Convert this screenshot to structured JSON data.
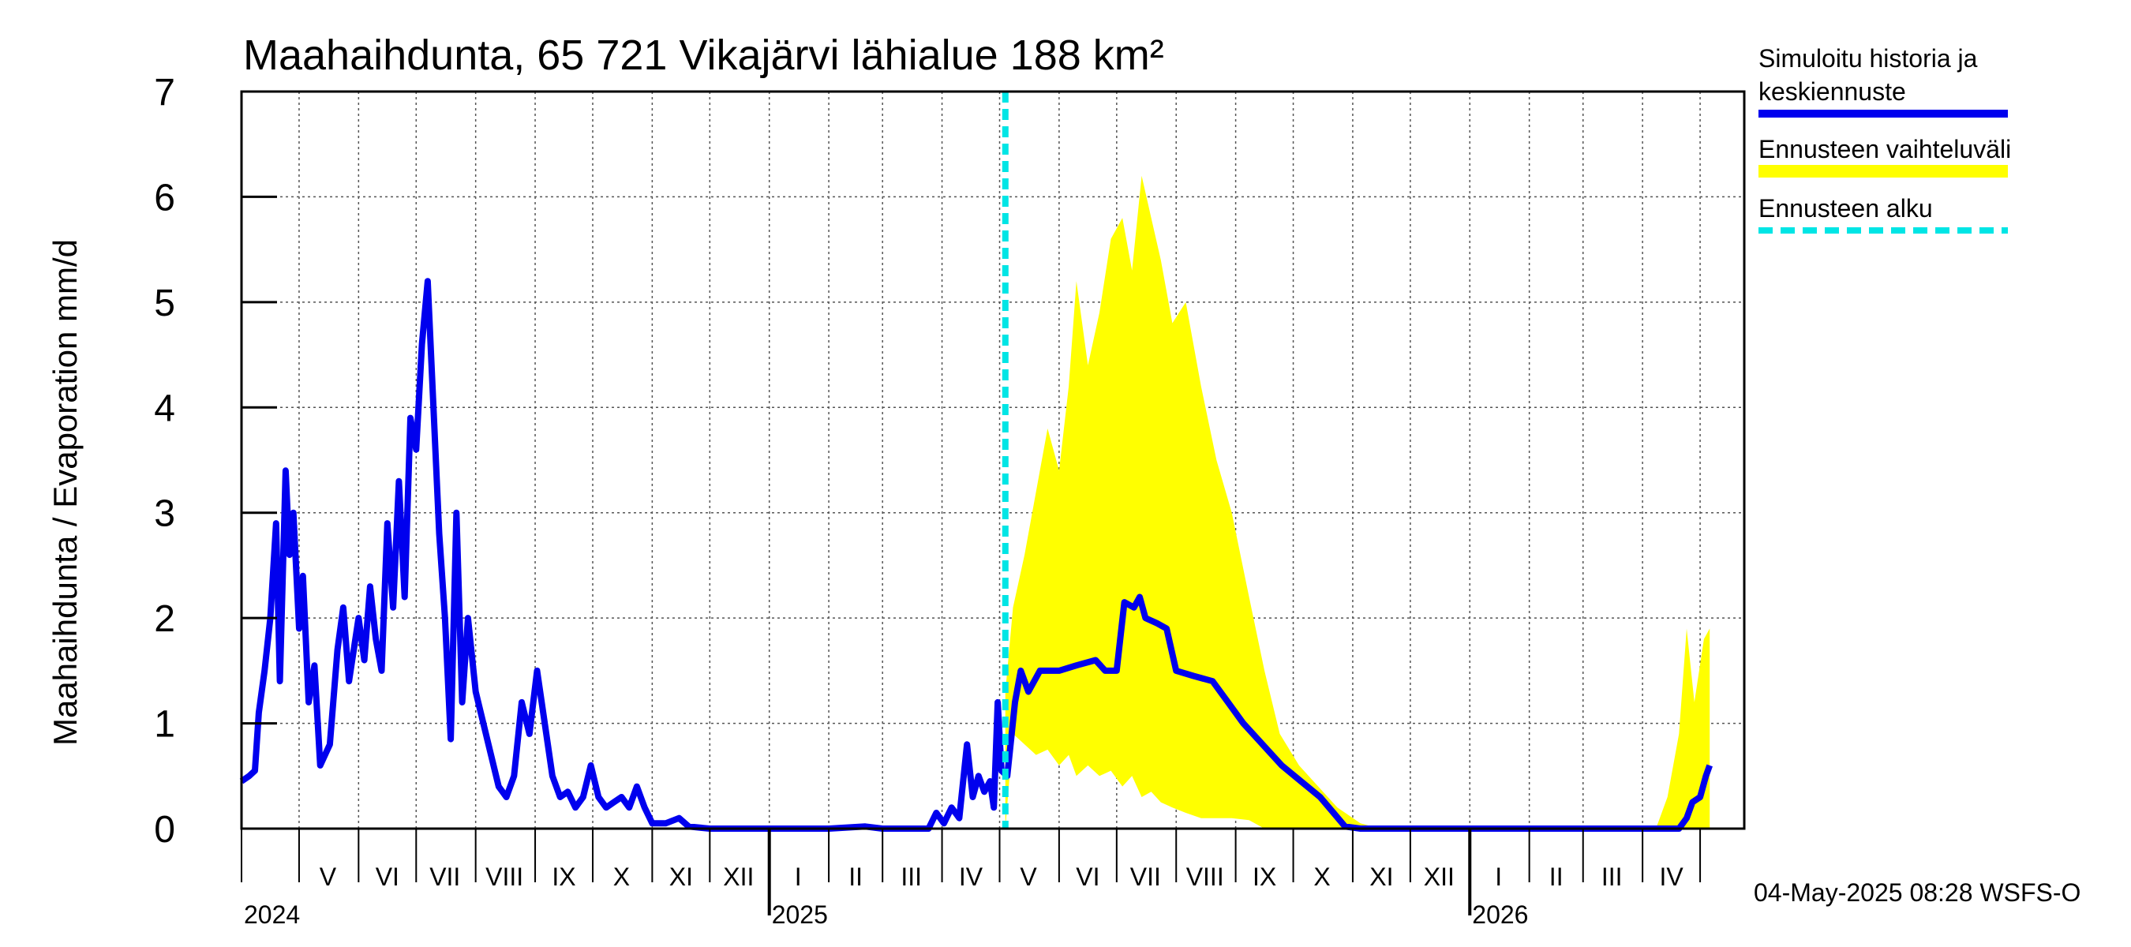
{
  "chart_data": {
    "type": "line",
    "title": "Maahaihdunta, 65 721 Vikajärvi lähialue 188 km²",
    "ylabel": "Maahaihdunta / Evaporation   mm/d",
    "ylim": [
      0,
      7
    ],
    "yticks": [
      "0",
      "1",
      "2",
      "3",
      "4",
      "5",
      "6",
      "7"
    ],
    "xlim": [
      "2024-04-01",
      "2026-05-24"
    ],
    "grid": true,
    "month_labels": [
      {
        "label": "V",
        "date": "2024-05-16"
      },
      {
        "label": "VI",
        "date": "2024-06-16"
      },
      {
        "label": "VII",
        "date": "2024-07-16"
      },
      {
        "label": "VIII",
        "date": "2024-08-16"
      },
      {
        "label": "IX",
        "date": "2024-09-16"
      },
      {
        "label": "X",
        "date": "2024-10-16"
      },
      {
        "label": "XI",
        "date": "2024-11-16"
      },
      {
        "label": "XII",
        "date": "2024-12-16"
      },
      {
        "label": "I",
        "date": "2025-01-16"
      },
      {
        "label": "II",
        "date": "2025-02-15"
      },
      {
        "label": "III",
        "date": "2025-03-16"
      },
      {
        "label": "IV",
        "date": "2025-04-16"
      },
      {
        "label": "V",
        "date": "2025-05-16"
      },
      {
        "label": "VI",
        "date": "2025-06-16"
      },
      {
        "label": "VII",
        "date": "2025-07-16"
      },
      {
        "label": "VIII",
        "date": "2025-08-16"
      },
      {
        "label": "IX",
        "date": "2025-09-16"
      },
      {
        "label": "X",
        "date": "2025-10-16"
      },
      {
        "label": "XI",
        "date": "2025-11-16"
      },
      {
        "label": "XII",
        "date": "2025-12-16"
      },
      {
        "label": "I",
        "date": "2026-01-16"
      },
      {
        "label": "II",
        "date": "2026-02-15"
      },
      {
        "label": "III",
        "date": "2026-03-16"
      },
      {
        "label": "IV",
        "date": "2026-04-16"
      }
    ],
    "year_labels": [
      {
        "label": "2024",
        "date": "2024-04-01"
      },
      {
        "label": "2025",
        "date": "2025-01-01"
      },
      {
        "label": "2026",
        "date": "2026-01-01"
      }
    ],
    "forecast_start": "2025-05-04",
    "series": [
      {
        "name": "Simuloitu historia ja keskiennuste",
        "color": "#0000ee",
        "points": [
          [
            "2024-04-01",
            0.45
          ],
          [
            "2024-04-05",
            0.5
          ],
          [
            "2024-04-08",
            0.55
          ],
          [
            "2024-04-10",
            1.1
          ],
          [
            "2024-04-13",
            1.5
          ],
          [
            "2024-04-16",
            2.0
          ],
          [
            "2024-04-19",
            2.9
          ],
          [
            "2024-04-21",
            1.4
          ],
          [
            "2024-04-24",
            3.4
          ],
          [
            "2024-04-26",
            2.6
          ],
          [
            "2024-04-28",
            3.0
          ],
          [
            "2024-05-01",
            1.9
          ],
          [
            "2024-05-03",
            2.4
          ],
          [
            "2024-05-06",
            1.2
          ],
          [
            "2024-05-09",
            1.55
          ],
          [
            "2024-05-12",
            0.6
          ],
          [
            "2024-05-17",
            0.8
          ],
          [
            "2024-05-21",
            1.7
          ],
          [
            "2024-05-24",
            2.1
          ],
          [
            "2024-05-27",
            1.4
          ],
          [
            "2024-06-01",
            2.0
          ],
          [
            "2024-06-04",
            1.6
          ],
          [
            "2024-06-07",
            2.3
          ],
          [
            "2024-06-10",
            1.8
          ],
          [
            "2024-06-13",
            1.5
          ],
          [
            "2024-06-16",
            2.9
          ],
          [
            "2024-06-19",
            2.1
          ],
          [
            "2024-06-22",
            3.3
          ],
          [
            "2024-06-25",
            2.2
          ],
          [
            "2024-06-28",
            3.9
          ],
          [
            "2024-07-01",
            3.6
          ],
          [
            "2024-07-04",
            4.6
          ],
          [
            "2024-07-07",
            5.2
          ],
          [
            "2024-07-10",
            4.0
          ],
          [
            "2024-07-13",
            2.8
          ],
          [
            "2024-07-16",
            2.0
          ],
          [
            "2024-07-19",
            0.85
          ],
          [
            "2024-07-22",
            3.0
          ],
          [
            "2024-07-25",
            1.2
          ],
          [
            "2024-07-28",
            2.0
          ],
          [
            "2024-08-01",
            1.3
          ],
          [
            "2024-08-05",
            1.0
          ],
          [
            "2024-08-09",
            0.7
          ],
          [
            "2024-08-13",
            0.4
          ],
          [
            "2024-08-17",
            0.3
          ],
          [
            "2024-08-21",
            0.5
          ],
          [
            "2024-08-25",
            1.2
          ],
          [
            "2024-08-29",
            0.9
          ],
          [
            "2024-09-02",
            1.5
          ],
          [
            "2024-09-06",
            1.0
          ],
          [
            "2024-09-10",
            0.5
          ],
          [
            "2024-09-14",
            0.3
          ],
          [
            "2024-09-18",
            0.35
          ],
          [
            "2024-09-22",
            0.2
          ],
          [
            "2024-09-26",
            0.3
          ],
          [
            "2024-09-30",
            0.6
          ],
          [
            "2024-10-04",
            0.3
          ],
          [
            "2024-10-08",
            0.2
          ],
          [
            "2024-10-12",
            0.25
          ],
          [
            "2024-10-16",
            0.3
          ],
          [
            "2024-10-20",
            0.2
          ],
          [
            "2024-10-24",
            0.4
          ],
          [
            "2024-10-28",
            0.2
          ],
          [
            "2024-11-01",
            0.05
          ],
          [
            "2024-11-08",
            0.05
          ],
          [
            "2024-11-15",
            0.1
          ],
          [
            "2024-11-20",
            0.02
          ],
          [
            "2024-12-01",
            0.0
          ],
          [
            "2025-01-01",
            0.0
          ],
          [
            "2025-02-01",
            0.0
          ],
          [
            "2025-02-20",
            0.02
          ],
          [
            "2025-03-01",
            0.0
          ],
          [
            "2025-03-25",
            0.0
          ],
          [
            "2025-03-29",
            0.15
          ],
          [
            "2025-04-02",
            0.05
          ],
          [
            "2025-04-06",
            0.2
          ],
          [
            "2025-04-10",
            0.1
          ],
          [
            "2025-04-14",
            0.8
          ],
          [
            "2025-04-17",
            0.3
          ],
          [
            "2025-04-20",
            0.5
          ],
          [
            "2025-04-23",
            0.35
          ],
          [
            "2025-04-26",
            0.45
          ],
          [
            "2025-04-28",
            0.2
          ],
          [
            "2025-04-30",
            1.2
          ],
          [
            "2025-05-02",
            0.55
          ],
          [
            "2025-05-05",
            0.5
          ],
          [
            "2025-05-09",
            1.2
          ],
          [
            "2025-05-12",
            1.5
          ],
          [
            "2025-05-16",
            1.3
          ],
          [
            "2025-05-22",
            1.5
          ],
          [
            "2025-06-01",
            1.5
          ],
          [
            "2025-06-10",
            1.55
          ],
          [
            "2025-06-20",
            1.6
          ],
          [
            "2025-06-25",
            1.5
          ],
          [
            "2025-07-01",
            1.5
          ],
          [
            "2025-07-05",
            2.15
          ],
          [
            "2025-07-10",
            2.1
          ],
          [
            "2025-07-13",
            2.2
          ],
          [
            "2025-07-16",
            2.0
          ],
          [
            "2025-07-22",
            1.95
          ],
          [
            "2025-07-27",
            1.9
          ],
          [
            "2025-08-01",
            1.5
          ],
          [
            "2025-08-10",
            1.45
          ],
          [
            "2025-08-20",
            1.4
          ],
          [
            "2025-08-28",
            1.2
          ],
          [
            "2025-09-05",
            1.0
          ],
          [
            "2025-09-15",
            0.8
          ],
          [
            "2025-09-25",
            0.6
          ],
          [
            "2025-10-05",
            0.45
          ],
          [
            "2025-10-15",
            0.3
          ],
          [
            "2025-10-22",
            0.15
          ],
          [
            "2025-10-28",
            0.02
          ],
          [
            "2025-11-05",
            0.0
          ],
          [
            "2026-04-20",
            0.0
          ],
          [
            "2026-04-24",
            0.1
          ],
          [
            "2026-04-27",
            0.25
          ],
          [
            "2026-05-01",
            0.3
          ],
          [
            "2026-05-04",
            0.5
          ],
          [
            "2026-05-06",
            0.6
          ]
        ]
      },
      {
        "name": "Ennusteen vaihteluväli",
        "color": "#ffff00",
        "band": [
          [
            "2025-05-04",
            0.0,
            1.3
          ],
          [
            "2025-05-08",
            0.9,
            2.1
          ],
          [
            "2025-05-14",
            0.8,
            2.6
          ],
          [
            "2025-05-20",
            0.7,
            3.2
          ],
          [
            "2025-05-26",
            0.75,
            3.8
          ],
          [
            "2025-06-01",
            0.6,
            3.4
          ],
          [
            "2025-06-06",
            0.7,
            4.2
          ],
          [
            "2025-06-10",
            0.5,
            5.2
          ],
          [
            "2025-06-16",
            0.6,
            4.4
          ],
          [
            "2025-06-22",
            0.5,
            4.9
          ],
          [
            "2025-06-28",
            0.55,
            5.6
          ],
          [
            "2025-07-04",
            0.4,
            5.8
          ],
          [
            "2025-07-09",
            0.5,
            5.3
          ],
          [
            "2025-07-14",
            0.3,
            6.2
          ],
          [
            "2025-07-19",
            0.35,
            5.8
          ],
          [
            "2025-07-24",
            0.25,
            5.4
          ],
          [
            "2025-07-30",
            0.2,
            4.8
          ],
          [
            "2025-08-06",
            0.15,
            5.0
          ],
          [
            "2025-08-14",
            0.1,
            4.2
          ],
          [
            "2025-08-22",
            0.1,
            3.5
          ],
          [
            "2025-08-30",
            0.1,
            3.0
          ],
          [
            "2025-09-08",
            0.08,
            2.2
          ],
          [
            "2025-09-16",
            0.0,
            1.5
          ],
          [
            "2025-09-24",
            0.0,
            0.9
          ],
          [
            "2025-10-04",
            0.0,
            0.6
          ],
          [
            "2025-10-14",
            0.0,
            0.4
          ],
          [
            "2025-10-24",
            0.0,
            0.2
          ],
          [
            "2025-11-05",
            0.0,
            0.05
          ],
          [
            "2025-11-15",
            0.0,
            0.0
          ],
          [
            "2026-04-08",
            0.0,
            0.0
          ],
          [
            "2026-04-14",
            0.0,
            0.3
          ],
          [
            "2026-04-20",
            0.0,
            0.9
          ],
          [
            "2026-04-24",
            0.0,
            1.9
          ],
          [
            "2026-04-28",
            0.0,
            1.2
          ],
          [
            "2026-05-03",
            0.0,
            1.8
          ],
          [
            "2026-05-06",
            0.0,
            1.9
          ]
        ]
      },
      {
        "name": "Ennusteen alku",
        "color": "#00e5e5"
      }
    ]
  },
  "legend": {
    "history_line1": "Simuloitu historia ja",
    "history_line2": "keskiennuste",
    "range": "Ennusteen vaihteluväli",
    "start": "Ennusteen alku"
  },
  "footer": "04-May-2025 08:28 WSFS-O"
}
